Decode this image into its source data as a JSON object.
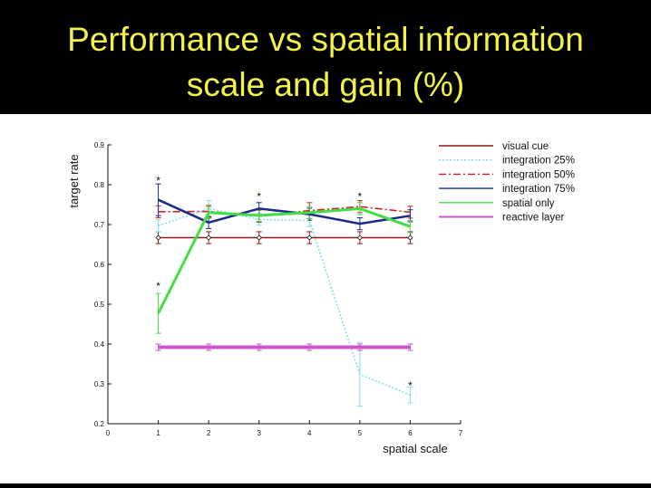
{
  "slide": {
    "title_line_1": "Performance vs spatial information",
    "title_line_2": "scale and gain (%)"
  },
  "chart_data": {
    "type": "line",
    "xlabel": "spatial scale",
    "ylabel": "target rate",
    "xlim": [
      0,
      7
    ],
    "ylim": [
      0.2,
      0.9
    ],
    "x_ticks": [
      "0",
      "1",
      "2",
      "3",
      "4",
      "5",
      "6",
      "7"
    ],
    "y_ticks": [
      "0.2",
      "0.3",
      "0.4",
      "0.5",
      "0.6",
      "0.7",
      "0.8",
      "0.9"
    ],
    "legend_position": "top-right, outside plot",
    "series": [
      {
        "name": "visual cue",
        "color": "#8b1a1a",
        "style": "solid",
        "x": [
          1,
          2,
          3,
          4,
          5,
          6
        ],
        "y": [
          0.667,
          0.667,
          0.667,
          0.667,
          0.667,
          0.667
        ],
        "err": [
          0.015,
          0.015,
          0.015,
          0.015,
          0.015,
          0.015
        ],
        "markers": "diamond"
      },
      {
        "name": "integration 25%",
        "color": "#7fe0e6",
        "style": "dotted",
        "x": [
          1,
          2,
          3,
          4,
          5,
          6
        ],
        "y": [
          0.697,
          0.74,
          0.713,
          0.71,
          0.324,
          0.272
        ],
        "err": [
          0.015,
          0.02,
          0.015,
          0.015,
          0.08,
          0.02
        ]
      },
      {
        "name": "integration 50%",
        "color": "#cc2222",
        "style": "dashdot",
        "x": [
          1,
          2,
          3,
          4,
          5,
          6
        ],
        "y": [
          0.732,
          0.733,
          0.721,
          0.735,
          0.745,
          0.731
        ],
        "err": [
          0.015,
          0.015,
          0.015,
          0.02,
          0.015,
          0.015
        ]
      },
      {
        "name": "integration 75%",
        "color": "#1a2a8c",
        "style": "solid",
        "x": [
          1,
          2,
          3,
          4,
          5,
          6
        ],
        "y": [
          0.762,
          0.705,
          0.74,
          0.726,
          0.702,
          0.722
        ],
        "err": [
          0.04,
          0.015,
          0.015,
          0.015,
          0.015,
          0.015
        ]
      },
      {
        "name": "spatial only",
        "color": "#44dd44",
        "style": "solid",
        "x": [
          1,
          2,
          3,
          4,
          5,
          6
        ],
        "y": [
          0.477,
          0.73,
          0.723,
          0.73,
          0.74,
          0.695
        ],
        "err": [
          0.05,
          0.015,
          0.015,
          0.015,
          0.015,
          0.015
        ]
      },
      {
        "name": "reactive layer",
        "color": "#cc55cc",
        "style": "solid",
        "x": [
          1,
          2,
          3,
          4,
          5,
          6
        ],
        "y": [
          0.392,
          0.392,
          0.392,
          0.392,
          0.392,
          0.392
        ],
        "err": [
          0.008,
          0.008,
          0.008,
          0.008,
          0.008,
          0.008
        ]
      }
    ],
    "significance_markers": [
      {
        "text": "*",
        "x": 1,
        "y": 0.81
      },
      {
        "text": "*",
        "x": 1,
        "y": 0.545
      },
      {
        "text": "*",
        "x": 3,
        "y": 0.77
      },
      {
        "text": "*",
        "x": 5,
        "y": 0.77
      },
      {
        "text": "*",
        "x": 6,
        "y": 0.295
      }
    ]
  }
}
